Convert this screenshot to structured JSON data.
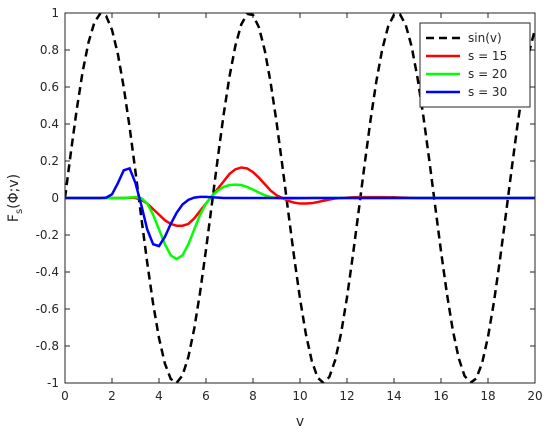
{
  "chart_data": {
    "type": "line",
    "xlabel": "v",
    "ylabel": {
      "main": "F",
      "sub": "s",
      "arg": "(Φ;v)"
    },
    "xlim": [
      0,
      20
    ],
    "ylim": [
      -1,
      1
    ],
    "xticks": [
      0,
      2,
      4,
      6,
      8,
      10,
      12,
      14,
      16,
      18,
      20
    ],
    "yticks": [
      -1,
      -0.8,
      -0.6,
      -0.4,
      -0.2,
      0,
      0.2,
      0.4,
      0.6,
      0.8,
      1
    ],
    "grid": false,
    "legend": "top-right",
    "x": [
      0,
      0.25,
      0.5,
      0.75,
      1,
      1.25,
      1.5,
      1.75,
      2,
      2.25,
      2.5,
      2.75,
      3,
      3.25,
      3.5,
      3.75,
      4,
      4.25,
      4.5,
      4.75,
      5,
      5.25,
      5.5,
      5.75,
      6,
      6.25,
      6.5,
      6.75,
      7,
      7.25,
      7.5,
      7.75,
      8,
      8.25,
      8.5,
      8.75,
      9,
      9.25,
      9.5,
      9.75,
      10,
      10.25,
      10.5,
      10.75,
      11,
      11.25,
      11.5,
      11.75,
      12,
      12.25,
      12.5,
      12.75,
      13,
      13.25,
      13.5,
      13.75,
      14,
      14.25,
      14.5,
      14.75,
      15,
      15.25,
      15.5,
      15.75,
      16,
      16.25,
      16.5,
      16.75,
      17,
      17.25,
      17.5,
      17.75,
      18,
      18.25,
      18.5,
      18.75,
      19,
      19.25,
      19.5,
      19.75,
      20
    ],
    "series": [
      {
        "name": "sin(v)",
        "color": "#000000",
        "dash": true,
        "values": [
          0,
          0.247,
          0.479,
          0.682,
          0.841,
          0.949,
          0.997,
          0.984,
          0.909,
          0.778,
          0.598,
          0.382,
          0.141,
          -0.108,
          -0.351,
          -0.572,
          -0.757,
          -0.895,
          -0.978,
          -0.999,
          -0.959,
          -0.859,
          -0.706,
          -0.508,
          -0.279,
          -0.033,
          0.215,
          0.451,
          0.657,
          0.823,
          0.938,
          0.995,
          0.989,
          0.923,
          0.798,
          0.624,
          0.412,
          0.174,
          -0.075,
          -0.319,
          -0.544,
          -0.736,
          -0.88,
          -0.971,
          -1,
          -0.967,
          -0.875,
          -0.73,
          -0.537,
          -0.31,
          -0.066,
          0.182,
          0.42,
          0.632,
          0.804,
          0.927,
          0.991,
          0.994,
          0.935,
          0.819,
          0.65,
          0.441,
          0.206,
          -0.042,
          -0.288,
          -0.516,
          -0.713,
          -0.864,
          -0.961,
          -0.999,
          -0.976,
          -0.892,
          -0.751,
          -0.564,
          -0.342,
          -0.099,
          0.15,
          0.39,
          0.605,
          0.788,
          0.913
        ]
      },
      {
        "name": "s = 15",
        "color": "#ff0000",
        "dash": false,
        "values": [
          0,
          0,
          0,
          0,
          0,
          0,
          0,
          0,
          0,
          0,
          0,
          0.002,
          0,
          -0.01,
          -0.03,
          -0.06,
          -0.09,
          -0.12,
          -0.14,
          -0.15,
          -0.15,
          -0.14,
          -0.11,
          -0.07,
          -0.03,
          0.01,
          0.05,
          0.09,
          0.13,
          0.155,
          0.165,
          0.16,
          0.14,
          0.11,
          0.075,
          0.04,
          0.015,
          0,
          -0.015,
          -0.025,
          -0.03,
          -0.03,
          -0.028,
          -0.022,
          -0.015,
          -0.008,
          -0.003,
          0,
          0.002,
          0.004,
          0.005,
          0.005,
          0.005,
          0.005,
          0.005,
          0.004,
          0.004,
          0.003,
          0.002,
          0.001,
          0,
          0,
          0,
          0,
          0,
          0,
          0,
          0,
          0,
          0,
          0,
          0,
          0,
          0,
          0,
          0,
          0,
          0,
          0,
          0,
          0
        ]
      },
      {
        "name": "s = 20",
        "color": "#00ff00",
        "dash": false,
        "values": [
          0,
          0,
          0,
          0,
          0,
          0,
          0,
          0,
          0,
          0,
          0,
          0.003,
          0.005,
          0,
          -0.03,
          -0.09,
          -0.17,
          -0.25,
          -0.31,
          -0.33,
          -0.31,
          -0.25,
          -0.17,
          -0.09,
          -0.03,
          0.01,
          0.04,
          0.06,
          0.07,
          0.072,
          0.07,
          0.06,
          0.045,
          0.03,
          0.015,
          0.005,
          0,
          -0.003,
          -0.004,
          -0.003,
          -0.002,
          -0.001,
          0,
          0,
          0,
          0,
          0,
          0,
          0,
          0,
          0,
          0,
          0,
          0,
          0,
          0,
          0,
          0,
          0,
          0,
          0,
          0,
          0,
          0,
          0,
          0,
          0,
          0,
          0,
          0,
          0,
          0,
          0,
          0,
          0,
          0,
          0,
          0,
          0,
          0,
          0
        ]
      },
      {
        "name": "s = 30",
        "color": "#0000ff",
        "dash": false,
        "values": [
          0,
          0,
          0,
          0,
          0,
          0,
          0,
          0.002,
          0.02,
          0.08,
          0.15,
          0.16,
          0.08,
          -0.04,
          -0.17,
          -0.25,
          -0.26,
          -0.21,
          -0.14,
          -0.08,
          -0.035,
          -0.01,
          0.002,
          0.006,
          0.006,
          0.004,
          0.002,
          0,
          0,
          0,
          0,
          0,
          0,
          0,
          0,
          0,
          0,
          0,
          0,
          0,
          0,
          0,
          0,
          0,
          0,
          0,
          0,
          0,
          0,
          0,
          0,
          0,
          0,
          0,
          0,
          0,
          0,
          0,
          0,
          0,
          0,
          0,
          0,
          0,
          0,
          0,
          0,
          0,
          0,
          0,
          0,
          0,
          0,
          0,
          0,
          0,
          0,
          0,
          0,
          0,
          0
        ]
      }
    ]
  }
}
